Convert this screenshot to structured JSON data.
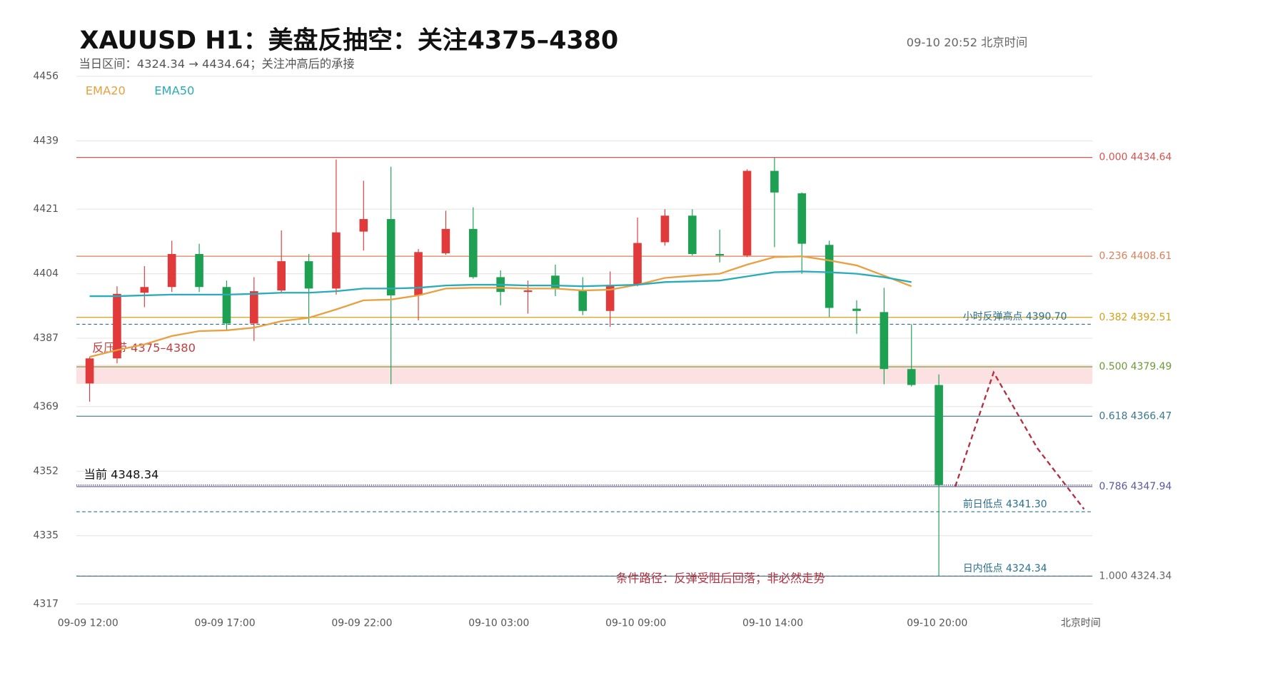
{
  "chart_data": {
    "type": "candlestick",
    "title": "XAUUSD  H1：美盘反抽空：关注4375–4380",
    "subtitle": "当日区间：4324.34 → 4434.64；关注冲高后的承接",
    "timestamp": "09-10  20:52 北京时间",
    "x_axis_note": "北京时间",
    "categories": [
      "09-09 12:00",
      null,
      null,
      null,
      null,
      "09-09 17:00",
      null,
      null,
      null,
      null,
      "09-09 22:00",
      null,
      null,
      null,
      null,
      "09-10 03:00",
      null,
      null,
      null,
      null,
      "09-10 09:00",
      null,
      null,
      null,
      null,
      "09-10 14:00",
      null,
      null,
      null,
      null,
      null,
      "09-10 20:00"
    ],
    "open": [
      4375.1,
      4381.7,
      4399.0,
      4400.5,
      4409.2,
      4400.5,
      4390.9,
      4399.6,
      4407.3,
      4400.1,
      4415.1,
      4418.4,
      4398.3,
      4409.4,
      4415.8,
      4403.1,
      4399.2,
      4403.5,
      4399.6,
      4394.2,
      4401.1,
      4412.3,
      4419.3,
      4409.2,
      4408.8,
      4431.1,
      4425.2,
      4411.6,
      4394.8,
      4393.9,
      4378.9,
      4374.7
    ],
    "high": [
      4382.1,
      4400.7,
      4406.0,
      4412.7,
      4411.9,
      4402.2,
      4403.1,
      4415.4,
      4409.2,
      4434.1,
      4428.5,
      4432.2,
      4410.5,
      4420.6,
      4421.5,
      4404.9,
      4402.2,
      4406.4,
      4403.1,
      4404.6,
      4418.8,
      4421.0,
      4421.0,
      4415.6,
      4431.5,
      4434.64,
      4425.4,
      4412.7,
      4397.0,
      4400.3,
      4390.7,
      4377.5
    ],
    "low": [
      4370.3,
      4380.4,
      4395.2,
      4399.2,
      4399.2,
      4389.1,
      4386.3,
      4399.2,
      4390.9,
      4398.5,
      4410.1,
      4374.9,
      4391.7,
      4409.0,
      4402.7,
      4395.7,
      4393.5,
      4398.1,
      4393.1,
      4390.0,
      4400.7,
      4411.4,
      4408.8,
      4407.0,
      4408.4,
      4411.0,
      4404.0,
      4392.6,
      4388.2,
      4374.9,
      4374.3,
      4324.34
    ],
    "close": [
      4381.7,
      4398.7,
      4400.5,
      4409.2,
      4400.5,
      4390.9,
      4399.4,
      4407.3,
      4400.1,
      4414.9,
      4418.4,
      4398.3,
      4409.7,
      4415.8,
      4403.1,
      4399.2,
      4399.6,
      4400.1,
      4394.2,
      4400.9,
      4412.1,
      4419.3,
      4409.2,
      4408.8,
      4431.1,
      4425.4,
      4411.9,
      4395.0,
      4394.2,
      4378.9,
      4374.7,
      4348.34
    ],
    "up_color": "#e03a3a",
    "down_color": "#1ea052",
    "series": [
      {
        "name": "EMA20",
        "color": "#e8a040",
        "values": [
          4382.1,
          4383.9,
          4385.4,
          4387.6,
          4388.9,
          4389.1,
          4389.8,
          4391.5,
          4392.4,
          4394.6,
          4397.0,
          4397.2,
          4398.3,
          4400.1,
          4400.3,
          4400.3,
          4400.1,
          4400.1,
          4399.6,
          4399.8,
          4401.1,
          4402.9,
          4403.5,
          4404.0,
          4406.4,
          4408.4,
          4408.6,
          4407.5,
          4406.2,
          4403.5,
          4400.7,
          null
        ]
      },
      {
        "name": "EMA50",
        "color": "#2aacb8",
        "values": [
          4398.1,
          4398.1,
          4398.3,
          4398.5,
          4398.5,
          4398.5,
          4398.7,
          4399.0,
          4399.0,
          4399.4,
          4400.1,
          4400.1,
          4400.3,
          4400.9,
          4401.1,
          4401.1,
          4400.9,
          4400.9,
          4400.7,
          4400.9,
          4401.1,
          4401.8,
          4402.0,
          4402.2,
          4403.3,
          4404.4,
          4404.6,
          4404.4,
          4404.0,
          4403.1,
          4401.8,
          null
        ]
      }
    ],
    "ylim": [
      4317,
      4456
    ],
    "yticks": [
      4317,
      4335,
      4352,
      4369,
      4387,
      4404,
      4421,
      4439,
      4456
    ],
    "grid": true,
    "fib_levels": [
      {
        "ratio": {
          "value": 0,
          "label": "0.000"
        },
        "value": 4434.64,
        "color": "#d9534f"
      },
      {
        "ratio": {
          "value": 0.236,
          "label": "0.236"
        },
        "value": 4408.61,
        "color": "#d9825b"
      },
      {
        "ratio": {
          "value": 0.382,
          "label": "0.382"
        },
        "value": 4392.51,
        "color": "#d4a017"
      },
      {
        "ratio": {
          "value": 0.5,
          "label": "0.500"
        },
        "value": 4379.49,
        "color": "#6e9a3a"
      },
      {
        "ratio": {
          "value": 0.618,
          "label": "0.618"
        },
        "value": 4366.47,
        "color": "#3a7a8c"
      },
      {
        "ratio": {
          "value": 0.786,
          "label": "0.786"
        },
        "value": 4347.94,
        "color": "#5a5aa0"
      },
      {
        "ratio": {
          "value": 1,
          "label": "1.000"
        },
        "value": 4324.34,
        "color": "#666666"
      }
    ],
    "key_levels": [
      {
        "value": 4390.7,
        "label": "小时反弹高点 4390.70",
        "color": "#2a7090"
      },
      {
        "value": 4341.3,
        "label": "前日低点 4341.30",
        "color": "#2a7090"
      },
      {
        "value": 4324.34,
        "label": "日内低点 4324.34",
        "color": "#2a7090"
      }
    ],
    "current": {
      "value": 4348.34,
      "label": "当前 4348.34",
      "color": "#333355"
    },
    "zone": {
      "range": [
        4375,
        4380
      ],
      "label": "反压带 4375–4380",
      "color": "#fbe1e1",
      "label_color": "#c04040"
    },
    "scenario": {
      "label": "条件路径：反弹受阻后回落；非必然走势",
      "x": [
        31.6,
        33,
        34.6,
        36.3
      ],
      "values": [
        4348,
        4378,
        4358,
        4342
      ],
      "color": "#b03040"
    }
  }
}
